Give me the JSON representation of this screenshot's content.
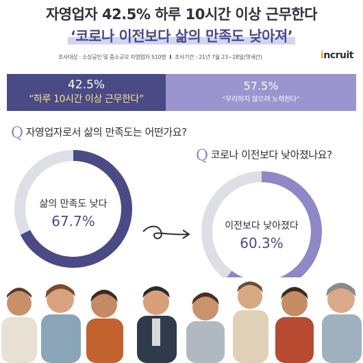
{
  "headline": {
    "line1": "자영업자 42.5% 하루 10시간 이상 근무한다",
    "line2": "‘코로나 이전보다 삶의 만족도 낮아져’"
  },
  "survey_info": {
    "target": "조사대상 : 소상공인 및 중소규모 자영업자 510명",
    "period": "조사기간 : 21년 7월 23~28일(엿새간)"
  },
  "logo": {
    "dot": "i",
    "text": "ncruit"
  },
  "comparison": {
    "left": {
      "percent": "42.5%",
      "label": "“하루 10시간 이상 근무한다”"
    },
    "right": {
      "percent": "57.5%",
      "label": "“무리하지 않으려 노력한다”"
    }
  },
  "questions": {
    "q1": {
      "mark": "Q",
      "text": "자영업자로서 삶의 만족도는 어떤가요?"
    },
    "q2": {
      "mark": "Q",
      "text": "코로나 이전보다 낮아졌나요?"
    }
  },
  "colors": {
    "dark_purple": "#4a4a86",
    "light_purple": "#9a94cf",
    "donut_track": "#dedee6",
    "accent_yellow": "#ffe28a"
  },
  "chart_data": [
    {
      "type": "pie",
      "variant": "donut",
      "label": "삶의 만족도 낮다",
      "value": 67.7,
      "value_text": "67.7%",
      "color": "#4a4a86"
    },
    {
      "type": "pie",
      "variant": "donut",
      "label": "이전보다 낮아졌다",
      "value": 60.3,
      "value_text": "60.3%",
      "color": "#8e88c6"
    }
  ]
}
